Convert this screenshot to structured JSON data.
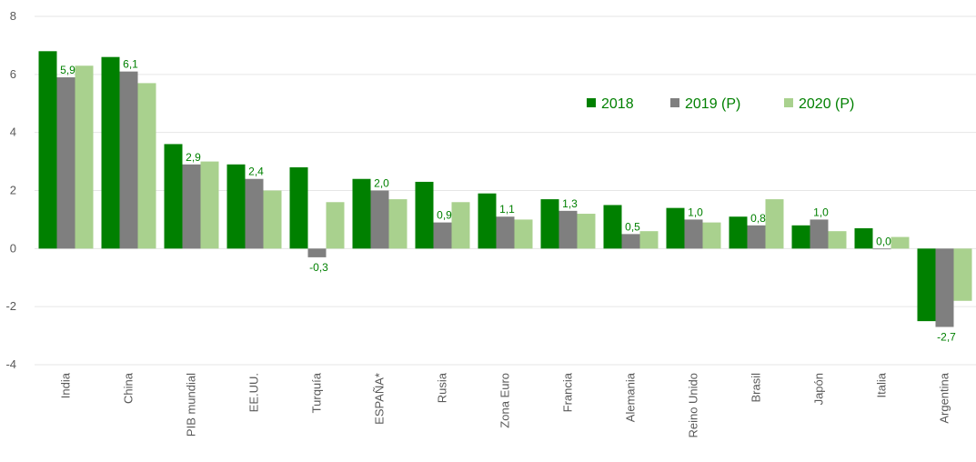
{
  "chart_data": {
    "type": "bar",
    "categories": [
      "India",
      "China",
      "PIB mundial",
      "EE.UU.",
      "Turquía",
      "ESPAÑA*",
      "Rusia",
      "Zona Euro",
      "Francia",
      "Alemania",
      "Reino Unido",
      "Brasil",
      "Japón",
      "Italia",
      "Argentina"
    ],
    "series": [
      {
        "name": "2018",
        "color": "#008000",
        "values": [
          6.8,
          6.6,
          3.6,
          2.9,
          2.8,
          2.4,
          2.3,
          1.9,
          1.7,
          1.5,
          1.4,
          1.1,
          0.8,
          0.7,
          -2.5
        ]
      },
      {
        "name": "2019 (P)",
        "color": "#7f7f7f",
        "values": [
          5.9,
          6.1,
          2.9,
          2.4,
          -0.3,
          2.0,
          0.9,
          1.1,
          1.3,
          0.5,
          1.0,
          0.8,
          1.0,
          0.0,
          -2.7
        ]
      },
      {
        "name": "2020 (P)",
        "color": "#a9d18e",
        "values": [
          6.3,
          5.7,
          3.0,
          2.0,
          1.6,
          1.7,
          1.6,
          1.0,
          1.2,
          0.6,
          0.9,
          1.7,
          0.6,
          0.4,
          -1.8
        ]
      }
    ],
    "data_labels": [
      "5,9",
      "6,1",
      "2,9",
      "2,4",
      "-0,3",
      "2,0",
      "0,9",
      "1,1",
      "1,3",
      "0,5",
      "1,0",
      "0,8",
      "1,0",
      "0,0",
      "-2,7"
    ],
    "data_label_color": "#008000",
    "y_ticks": [
      "-4",
      "-2",
      "0",
      "2",
      "4",
      "6",
      "8"
    ],
    "ylim": [
      -4,
      8
    ],
    "grid": true,
    "legend_position": "top-right",
    "title": "",
    "xlabel": "",
    "ylabel": ""
  }
}
